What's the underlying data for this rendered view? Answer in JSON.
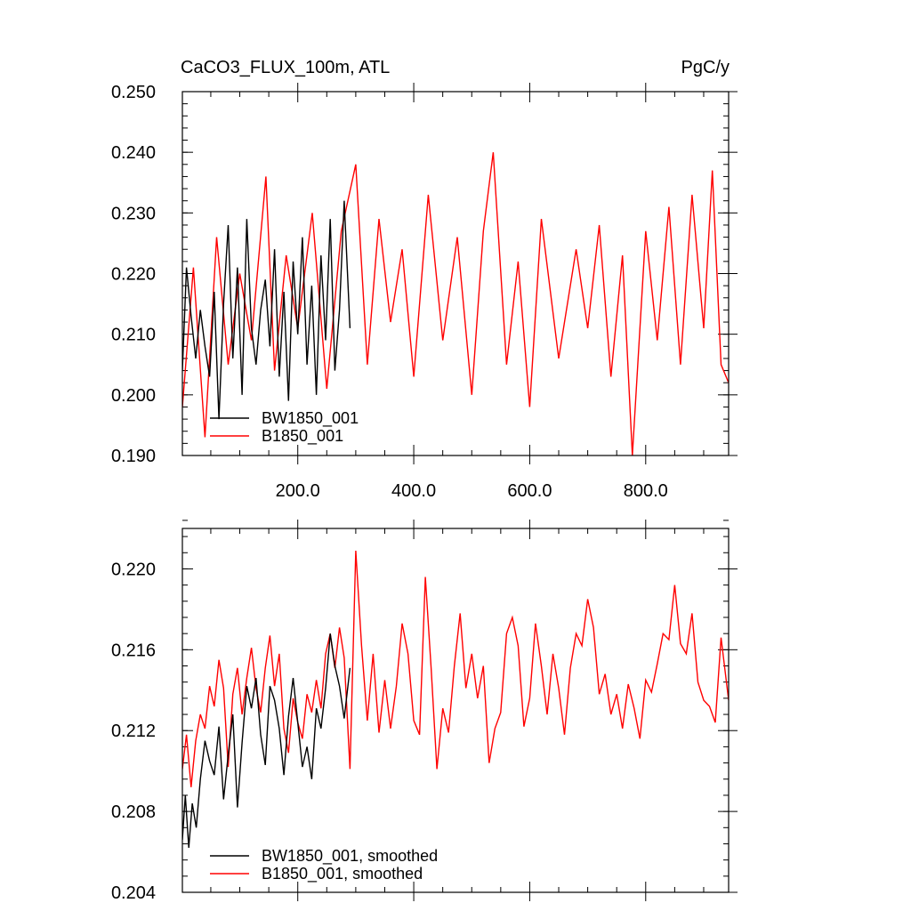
{
  "chart_data": [
    {
      "type": "line",
      "title_left": "CaCO3_FLUX_100m, ATL",
      "title_right": "PgC/y",
      "xlim": [
        1,
        943
      ],
      "ylim": [
        0.19,
        0.25
      ],
      "xticks": [
        200,
        400,
        600,
        800
      ],
      "xtick_labels": [
        "200.0",
        "400.0",
        "600.0",
        "800.0"
      ],
      "yticks": [
        0.19,
        0.2,
        0.21,
        0.22,
        0.23,
        0.24,
        0.25
      ],
      "ytick_labels": [
        "0.190",
        "0.200",
        "0.210",
        "0.220",
        "0.230",
        "0.240",
        "0.250"
      ],
      "legend_position": "bottom-left",
      "series": [
        {
          "name": "BW1850_001",
          "color": "#000000",
          "x": [
            1,
            8,
            16,
            24,
            32,
            40,
            48,
            56,
            64,
            72,
            80,
            88,
            96,
            104,
            112,
            120,
            128,
            136,
            144,
            152,
            160,
            168,
            176,
            184,
            192,
            200,
            208,
            216,
            224,
            232,
            240,
            248,
            256,
            264,
            272,
            280,
            290
          ],
          "y": [
            0.204,
            0.221,
            0.213,
            0.206,
            0.214,
            0.208,
            0.203,
            0.217,
            0.196,
            0.215,
            0.228,
            0.206,
            0.221,
            0.2,
            0.229,
            0.211,
            0.205,
            0.214,
            0.219,
            0.208,
            0.224,
            0.203,
            0.217,
            0.199,
            0.222,
            0.21,
            0.226,
            0.205,
            0.218,
            0.2,
            0.223,
            0.209,
            0.229,
            0.204,
            0.214,
            0.232,
            0.211
          ]
        },
        {
          "name": "B1850_001",
          "color": "#ff0000",
          "x": [
            1,
            20,
            40,
            60,
            80,
            100,
            120,
            145,
            160,
            180,
            200,
            225,
            250,
            275,
            300,
            320,
            340,
            360,
            380,
            400,
            425,
            450,
            475,
            500,
            520,
            537,
            560,
            580,
            600,
            620,
            650,
            680,
            700,
            720,
            740,
            760,
            777,
            800,
            820,
            840,
            860,
            880,
            900,
            915,
            930,
            943
          ],
          "y": [
            0.198,
            0.221,
            0.193,
            0.226,
            0.205,
            0.22,
            0.209,
            0.236,
            0.204,
            0.223,
            0.211,
            0.23,
            0.201,
            0.227,
            0.238,
            0.205,
            0.229,
            0.212,
            0.224,
            0.203,
            0.233,
            0.209,
            0.226,
            0.2,
            0.227,
            0.24,
            0.205,
            0.222,
            0.198,
            0.229,
            0.206,
            0.224,
            0.211,
            0.228,
            0.203,
            0.223,
            0.19,
            0.227,
            0.209,
            0.231,
            0.205,
            0.233,
            0.211,
            0.237,
            0.205,
            0.202
          ]
        }
      ]
    },
    {
      "type": "line",
      "xlim": [
        1,
        943
      ],
      "ylim": [
        0.204,
        0.222
      ],
      "xticks": [
        200,
        400,
        600,
        800
      ],
      "yticks": [
        0.204,
        0.208,
        0.212,
        0.216,
        0.22
      ],
      "ytick_labels": [
        "0.204",
        "0.208",
        "0.212",
        "0.216",
        "0.220"
      ],
      "legend_position": "bottom-left",
      "series": [
        {
          "name": "BW1850_001, smoothed",
          "color": "#000000",
          "x": [
            1,
            6,
            12,
            18,
            25,
            32,
            40,
            48,
            56,
            64,
            72,
            80,
            88,
            96,
            104,
            112,
            120,
            128,
            136,
            144,
            152,
            160,
            168,
            176,
            184,
            192,
            200,
            208,
            216,
            224,
            232,
            240,
            248,
            256,
            264,
            272,
            280,
            290
          ],
          "y": [
            0.2066,
            0.2088,
            0.2062,
            0.2084,
            0.2072,
            0.2096,
            0.2115,
            0.2105,
            0.2098,
            0.2122,
            0.2086,
            0.2108,
            0.2128,
            0.2082,
            0.2114,
            0.2142,
            0.2131,
            0.2146,
            0.2118,
            0.2103,
            0.2142,
            0.2135,
            0.2121,
            0.2098,
            0.2127,
            0.2146,
            0.2124,
            0.2102,
            0.2112,
            0.2096,
            0.2131,
            0.2121,
            0.2141,
            0.2168,
            0.2152,
            0.2142,
            0.2126,
            0.2151
          ]
        },
        {
          "name": "B1850_001, smoothed",
          "color": "#ff0000",
          "x": [
            1,
            8,
            16,
            24,
            32,
            40,
            48,
            56,
            64,
            72,
            80,
            88,
            96,
            104,
            112,
            120,
            128,
            136,
            144,
            152,
            160,
            168,
            176,
            184,
            192,
            200,
            208,
            216,
            224,
            232,
            240,
            248,
            256,
            264,
            272,
            280,
            290,
            300,
            310,
            320,
            330,
            340,
            350,
            360,
            370,
            380,
            390,
            400,
            410,
            420,
            430,
            440,
            450,
            460,
            470,
            480,
            490,
            500,
            510,
            520,
            530,
            540,
            550,
            560,
            570,
            580,
            590,
            600,
            610,
            620,
            630,
            640,
            650,
            660,
            670,
            680,
            690,
            700,
            710,
            720,
            730,
            740,
            750,
            760,
            770,
            780,
            790,
            800,
            810,
            820,
            830,
            840,
            850,
            860,
            870,
            880,
            890,
            900,
            910,
            920,
            930,
            943
          ],
          "y": [
            0.2101,
            0.2118,
            0.2092,
            0.2115,
            0.2128,
            0.2121,
            0.2142,
            0.2132,
            0.2155,
            0.2141,
            0.2102,
            0.2138,
            0.2151,
            0.2128,
            0.2146,
            0.2161,
            0.2141,
            0.2129,
            0.2151,
            0.2167,
            0.2142,
            0.2158,
            0.2121,
            0.2109,
            0.2136,
            0.2124,
            0.2116,
            0.2138,
            0.2129,
            0.2145,
            0.2131,
            0.2158,
            0.2168,
            0.2151,
            0.2171,
            0.2156,
            0.2101,
            0.2209,
            0.2162,
            0.2125,
            0.2158,
            0.2119,
            0.2145,
            0.2121,
            0.2142,
            0.2173,
            0.2158,
            0.2125,
            0.2118,
            0.2196,
            0.2151,
            0.2101,
            0.2131,
            0.2119,
            0.2152,
            0.2178,
            0.2141,
            0.2158,
            0.2136,
            0.2152,
            0.2104,
            0.2121,
            0.2129,
            0.2168,
            0.2176,
            0.2162,
            0.2122,
            0.2136,
            0.2173,
            0.2152,
            0.2128,
            0.2158,
            0.2141,
            0.2118,
            0.2151,
            0.2168,
            0.2162,
            0.2185,
            0.2171,
            0.2138,
            0.2148,
            0.2128,
            0.2138,
            0.2121,
            0.2143,
            0.2131,
            0.2116,
            0.2145,
            0.2139,
            0.2153,
            0.2168,
            0.2165,
            0.2192,
            0.2163,
            0.2158,
            0.2178,
            0.2144,
            0.2135,
            0.2132,
            0.2124,
            0.2166,
            0.2135
          ]
        }
      ]
    }
  ]
}
